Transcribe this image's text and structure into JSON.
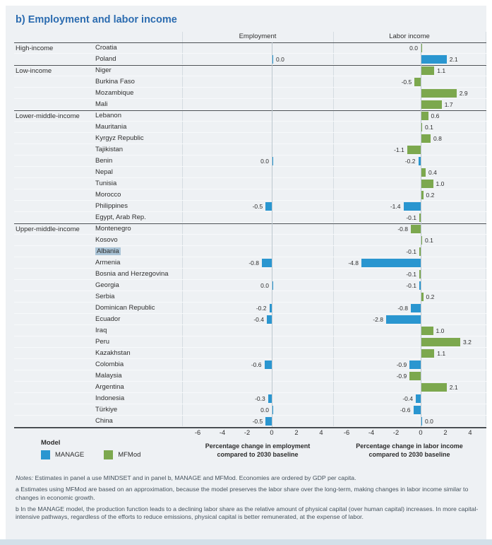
{
  "title": "b) Employment and labor income",
  "panels": {
    "employment": {
      "header": "Employment",
      "caption_line1": "Percentage change in employment",
      "caption_line2": "compared to 2030 baseline"
    },
    "labor_income": {
      "header": "Labor income",
      "caption_line1": "Percentage change in labor income",
      "caption_line2": "compared to 2030 baseline"
    }
  },
  "legend": {
    "title": "Model",
    "items": [
      {
        "label": "MANAGE",
        "color": "#2a96d0"
      },
      {
        "label": "MFMod",
        "color": "#7ca84e"
      }
    ]
  },
  "colors": {
    "MANAGE": "#2a96d0",
    "MFMod": "#7ca84e",
    "title": "#2c6cb0",
    "highlight": "#a9c3d6",
    "background": "#eef1f4"
  },
  "notes": {
    "prefix": "Notes:",
    "line1": " Estimates in panel a use MINDSET and in panel b, MANAGE and MFMod. Economies are ordered by GDP per capita.",
    "line2": "a Estimates using MFMod are based on an approximation, because the model preserves the labor share over the long-term, making changes in labor income similar to changes in economic growth.",
    "line3": "b In the MANAGE model, the production function leads to a declining labor share as the relative amount of physical capital (over human capital) increases. In more capital-intensive pathways, regardless of the efforts to reduce emissions, physical capital is better remunerated, at the expense of labor."
  },
  "chart_data": {
    "type": "bar",
    "orientation": "horizontal",
    "xlim": [
      -7.3,
      4.9
    ],
    "ticks": [
      -6,
      -4,
      -2,
      0,
      2,
      4
    ],
    "metrics": [
      "employment",
      "labor_income"
    ],
    "groups": [
      {
        "label": "High-income",
        "rows": [
          {
            "country": "Croatia",
            "employment": null,
            "labor_income": {
              "v": 0.0,
              "label": "0.0",
              "model": "MFMod",
              "side": "left"
            }
          },
          {
            "country": "Poland",
            "employment": {
              "v": 0.0,
              "label": "0.0",
              "model": "MANAGE",
              "side": "right"
            },
            "labor_income": {
              "v": 2.1,
              "label": "2.1",
              "model": "MANAGE"
            }
          }
        ]
      },
      {
        "label": "Low-income",
        "rows": [
          {
            "country": "Niger",
            "employment": null,
            "labor_income": {
              "v": 1.1,
              "label": "1.1",
              "model": "MFMod"
            }
          },
          {
            "country": "Burkina Faso",
            "employment": null,
            "labor_income": {
              "v": -0.5,
              "label": "-0.5",
              "model": "MFMod"
            }
          },
          {
            "country": "Mozambique",
            "employment": null,
            "labor_income": {
              "v": 2.9,
              "label": "2.9",
              "model": "MFMod"
            }
          },
          {
            "country": "Mali",
            "employment": null,
            "labor_income": {
              "v": 1.7,
              "label": "1.7",
              "model": "MFMod"
            }
          }
        ]
      },
      {
        "label": "Lower-middle-income",
        "rows": [
          {
            "country": "Lebanon",
            "employment": null,
            "labor_income": {
              "v": 0.6,
              "label": "0.6",
              "model": "MFMod"
            }
          },
          {
            "country": "Mauritania",
            "employment": null,
            "labor_income": {
              "v": 0.1,
              "label": "0.1",
              "model": "MFMod"
            }
          },
          {
            "country": "Kyrgyz Republic",
            "employment": null,
            "labor_income": {
              "v": 0.8,
              "label": "0.8",
              "model": "MFMod"
            }
          },
          {
            "country": "Tajikistan",
            "employment": null,
            "labor_income": {
              "v": -1.1,
              "label": "-1.1",
              "model": "MFMod"
            }
          },
          {
            "country": "Benin",
            "employment": {
              "v": 0.0,
              "label": "0.0",
              "model": "MANAGE",
              "side": "left"
            },
            "labor_income": {
              "v": -0.2,
              "label": "-0.2",
              "model": "MANAGE"
            }
          },
          {
            "country": "Nepal",
            "employment": null,
            "labor_income": {
              "v": 0.4,
              "label": "0.4",
              "model": "MFMod"
            }
          },
          {
            "country": "Tunisia",
            "employment": null,
            "labor_income": {
              "v": 1.0,
              "label": "1.0",
              "model": "MFMod"
            }
          },
          {
            "country": "Morocco",
            "employment": null,
            "labor_income": {
              "v": 0.2,
              "label": "0.2",
              "model": "MFMod"
            }
          },
          {
            "country": "Philippines",
            "employment": {
              "v": -0.5,
              "label": "-0.5",
              "model": "MANAGE"
            },
            "labor_income": {
              "v": -1.4,
              "label": "-1.4",
              "model": "MANAGE"
            }
          },
          {
            "country": "Egypt, Arab Rep.",
            "employment": null,
            "labor_income": {
              "v": -0.1,
              "label": "-0.1",
              "model": "MFMod"
            }
          }
        ]
      },
      {
        "label": "Upper-middle-income",
        "rows": [
          {
            "country": "Montenegro",
            "employment": null,
            "labor_income": {
              "v": -0.8,
              "label": "-0.8",
              "model": "MFMod"
            }
          },
          {
            "country": "Kosovo",
            "employment": null,
            "labor_income": {
              "v": 0.1,
              "label": "0.1",
              "model": "MFMod"
            }
          },
          {
            "country": "Albania",
            "highlight": true,
            "employment": null,
            "labor_income": {
              "v": -0.1,
              "label": "-0.1",
              "model": "MFMod"
            }
          },
          {
            "country": "Armenia",
            "employment": {
              "v": -0.8,
              "label": "-0.8",
              "model": "MANAGE"
            },
            "labor_income": {
              "v": -4.8,
              "label": "-4.8",
              "model": "MANAGE"
            }
          },
          {
            "country": "Bosnia and Herzegovina",
            "employment": null,
            "labor_income": {
              "v": -0.1,
              "label": "-0.1",
              "model": "MFMod"
            }
          },
          {
            "country": "Georgia",
            "employment": {
              "v": 0.0,
              "label": "0.0",
              "model": "MANAGE",
              "side": "left"
            },
            "labor_income": {
              "v": -0.1,
              "label": "-0.1",
              "model": "MANAGE"
            }
          },
          {
            "country": "Serbia",
            "employment": null,
            "labor_income": {
              "v": 0.2,
              "label": "0.2",
              "model": "MFMod"
            }
          },
          {
            "country": "Dominican Republic",
            "employment": {
              "v": -0.2,
              "label": "-0.2",
              "model": "MANAGE"
            },
            "labor_income": {
              "v": -0.8,
              "label": "-0.8",
              "model": "MANAGE"
            }
          },
          {
            "country": "Ecuador",
            "employment": {
              "v": -0.4,
              "label": "-0.4",
              "model": "MANAGE"
            },
            "labor_income": {
              "v": -2.8,
              "label": "-2.8",
              "model": "MANAGE"
            }
          },
          {
            "country": "Iraq",
            "employment": null,
            "labor_income": {
              "v": 1.0,
              "label": "1.0",
              "model": "MFMod"
            }
          },
          {
            "country": "Peru",
            "employment": null,
            "labor_income": {
              "v": 3.2,
              "label": "3.2",
              "model": "MFMod"
            }
          },
          {
            "country": "Kazakhstan",
            "employment": null,
            "labor_income": {
              "v": 1.1,
              "label": "1.1",
              "model": "MFMod"
            }
          },
          {
            "country": "Colombia",
            "employment": {
              "v": -0.6,
              "label": "-0.6",
              "model": "MANAGE"
            },
            "labor_income": {
              "v": -0.9,
              "label": "-0.9",
              "model": "MANAGE"
            }
          },
          {
            "country": "Malaysia",
            "employment": null,
            "labor_income": {
              "v": -0.9,
              "label": "-0.9",
              "model": "MFMod"
            }
          },
          {
            "country": "Argentina",
            "employment": null,
            "labor_income": {
              "v": 2.1,
              "label": "2.1",
              "model": "MFMod"
            }
          },
          {
            "country": "Indonesia",
            "employment": {
              "v": -0.3,
              "label": "-0.3",
              "model": "MANAGE"
            },
            "labor_income": {
              "v": -0.4,
              "label": "-0.4",
              "model": "MANAGE"
            }
          },
          {
            "country": "Türkiye",
            "employment": {
              "v": 0.0,
              "label": "0.0",
              "model": "MANAGE",
              "side": "left"
            },
            "labor_income": {
              "v": -0.6,
              "label": "-0.6",
              "model": "MANAGE"
            }
          },
          {
            "country": "China",
            "employment": {
              "v": -0.5,
              "label": "-0.5",
              "model": "MANAGE"
            },
            "labor_income": {
              "v": 0.0,
              "label": "0.0",
              "model": "MANAGE",
              "side": "right"
            }
          }
        ]
      }
    ]
  }
}
